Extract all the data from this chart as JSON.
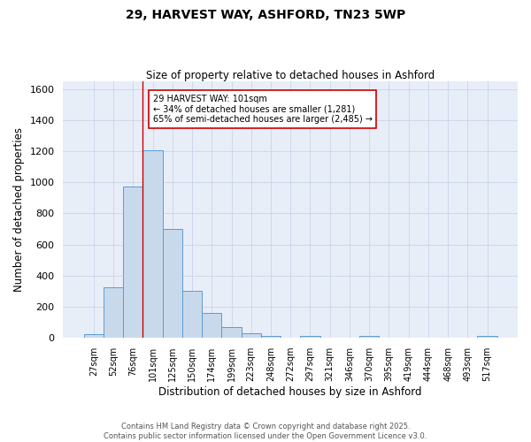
{
  "title_line1": "29, HARVEST WAY, ASHFORD, TN23 5WP",
  "title_line2": "Size of property relative to detached houses in Ashford",
  "xlabel": "Distribution of detached houses by size in Ashford",
  "ylabel": "Number of detached properties",
  "categories": [
    "27sqm",
    "52sqm",
    "76sqm",
    "101sqm",
    "125sqm",
    "150sqm",
    "174sqm",
    "199sqm",
    "223sqm",
    "248sqm",
    "272sqm",
    "297sqm",
    "321sqm",
    "346sqm",
    "370sqm",
    "395sqm",
    "419sqm",
    "444sqm",
    "468sqm",
    "493sqm",
    "517sqm"
  ],
  "values": [
    25,
    325,
    975,
    1205,
    700,
    305,
    160,
    70,
    30,
    10,
    0,
    10,
    0,
    0,
    12,
    0,
    0,
    0,
    0,
    0,
    10
  ],
  "bar_color": "#c9d9ec",
  "bar_edge_color": "#5b9bd5",
  "grid_color": "#c8d4e8",
  "background_color": "#e8eef8",
  "ref_line_color": "#cc0000",
  "annotation_text": "29 HARVEST WAY: 101sqm\n← 34% of detached houses are smaller (1,281)\n65% of semi-detached houses are larger (2,485) →",
  "annotation_box_color": "#ffffff",
  "annotation_box_edge_color": "#cc0000",
  "ylim": [
    0,
    1650
  ],
  "yticks": [
    0,
    200,
    400,
    600,
    800,
    1000,
    1200,
    1400,
    1600
  ],
  "footer_line1": "Contains HM Land Registry data © Crown copyright and database right 2025.",
  "footer_line2": "Contains public sector information licensed under the Open Government Licence v3.0."
}
